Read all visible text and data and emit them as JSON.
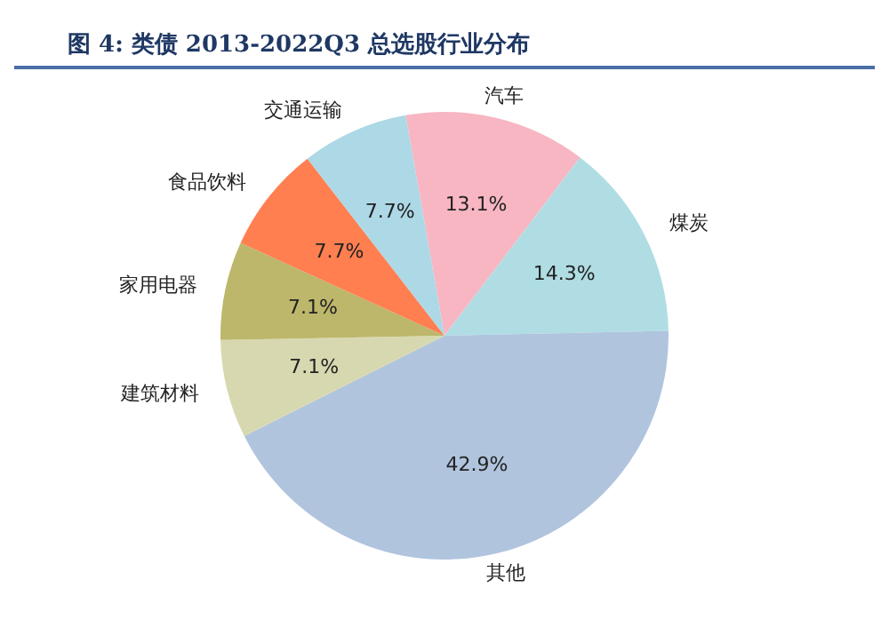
{
  "chart_data": {
    "type": "pie",
    "title": "图 4: 类债 2013-2022Q3 总选股行业分布",
    "categories": [
      "汽车",
      "煤炭",
      "其他",
      "建筑材料",
      "家用电器",
      "食品饮料",
      "交通运输"
    ],
    "values": [
      13.1,
      14.3,
      42.9,
      7.1,
      7.1,
      7.7,
      7.7
    ],
    "value_labels": [
      "13.1%",
      "14.3%",
      "42.9%",
      "7.1%",
      "7.1%",
      "7.7%",
      "7.7%"
    ],
    "colors": [
      "#f7b6c2",
      "#b0dde4",
      "#b0c4de",
      "#d8d8b0",
      "#bdb76b",
      "#ff7f50",
      "#add8e6"
    ],
    "legend": false
  }
}
